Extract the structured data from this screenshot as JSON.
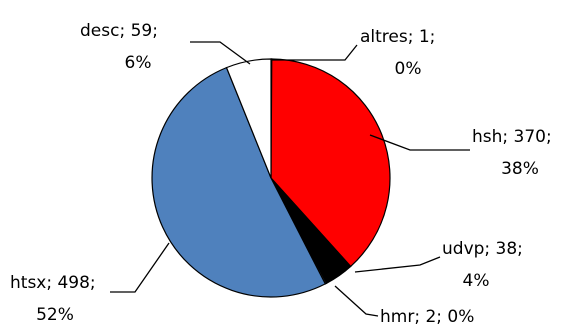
{
  "chart_data": {
    "type": "pie",
    "title": "",
    "start_angle_deg": 0,
    "direction": "clockwise",
    "slices": [
      {
        "name": "altres",
        "value": 1,
        "percent": "0%",
        "color": "#ffffff",
        "label_line1": "altres; 1;",
        "label_line2": "0%"
      },
      {
        "name": "hsh",
        "value": 370,
        "percent": "38%",
        "color": "#ff0000",
        "label_line1": "hsh; 370;",
        "label_line2": "38%"
      },
      {
        "name": "udvp",
        "value": 38,
        "percent": "4%",
        "color": "#000000",
        "label_line1": "udvp; 38;",
        "label_line2": "4%"
      },
      {
        "name": "hmr",
        "value": 2,
        "percent": "0%",
        "color": "#3a3a3a",
        "label_line1": "hmr; 2; 0%",
        "label_line2": ""
      },
      {
        "name": "htsx",
        "value": 498,
        "percent": "52%",
        "color": "#4f81bd",
        "label_line1": "htsx; 498;",
        "label_line2": "52%"
      },
      {
        "name": "desc",
        "value": 59,
        "percent": "6%",
        "color": "#ffffff",
        "label_line1": "desc; 59;",
        "label_line2": "6%"
      }
    ]
  }
}
